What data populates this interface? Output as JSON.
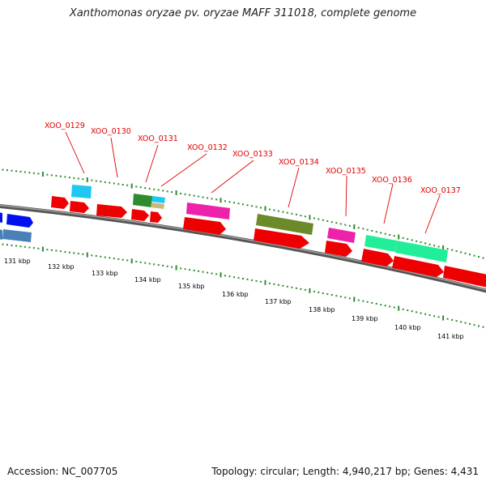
{
  "title": "Xanthomonas oryzae pv. oryzae MAFF 311018, complete genome",
  "footer": {
    "accession": "Accession: NC_007705",
    "summary": "Topology: circular; Length: 4,940,217 bp; Genes: 4,431"
  },
  "colors": {
    "backbone": "#7a7a7a",
    "ticks": "#2e8b2e",
    "label_red": "#e00000",
    "gene_red": "#ee0000",
    "gene_blue": "#0011ee",
    "gene_steel": "#4a80b8",
    "gene_cyan": "#1ec8f0",
    "gene_green": "#2e8b2e",
    "gene_olive": "#6b8a2a",
    "gene_magenta": "#ee22aa",
    "gene_teal": "#22ee99",
    "gene_tan": "#c8b87a"
  },
  "scale": {
    "unit": "kbp",
    "ticks": [
      "131 kbp",
      "132 kbp",
      "133 kbp",
      "134 kbp",
      "135 kbp",
      "136 kbp",
      "137 kbp",
      "138 kbp",
      "139 kbp",
      "140 kbp",
      "141 kbp"
    ]
  },
  "gene_labels": [
    "XOO_0129",
    "XOO_0130",
    "XOO_0131",
    "XOO_0132",
    "XOO_0133",
    "XOO_0134",
    "XOO_0135",
    "XOO_0136",
    "XOO_0137"
  ]
}
